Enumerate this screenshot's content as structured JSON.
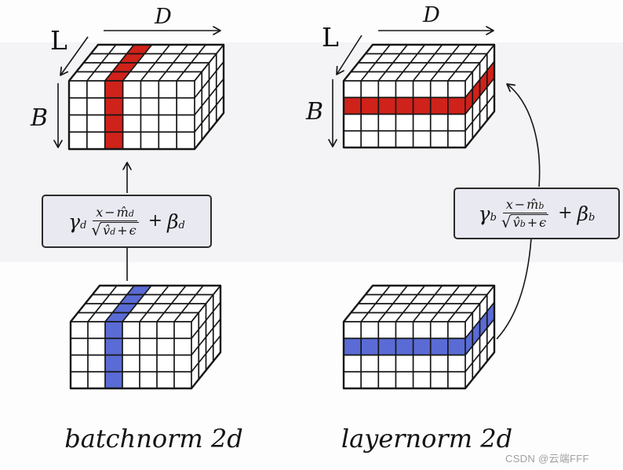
{
  "watermark": "CSDN @云端FFF",
  "colors": {
    "highlight_red": "#cf221a",
    "highlight_blue": "#5a6bd5",
    "edge": "#161616",
    "box_bg": "#e9e9f2",
    "box_border": "#2b2b2b",
    "watermark_gray": "#a0a0a0"
  },
  "dims": {
    "cols": 7,
    "rows": 4,
    "depth": 4
  },
  "panels": [
    {
      "id": "batchnorm",
      "caption": "batchnorm 2d",
      "axis": {
        "d": "D",
        "l": "L",
        "b": "B"
      },
      "formula": {
        "gamma": "γ",
        "sub": "d",
        "x": "x",
        "minus": "−",
        "m_hat": "m̂",
        "sqrt": "√",
        "v_hat": "v̂",
        "plus": "+",
        "epsilon": "ϵ",
        "beta": "β"
      },
      "cubes": {
        "top": {
          "highlight": "column",
          "index": 2,
          "color": "highlight_red"
        },
        "bottom": {
          "highlight": "column",
          "index": 2,
          "color": "highlight_blue"
        }
      }
    },
    {
      "id": "layernorm",
      "caption": "layernorm 2d",
      "axis": {
        "d": "D",
        "l": "L",
        "b": "B"
      },
      "formula": {
        "gamma": "γ",
        "sub": "b",
        "x": "x",
        "minus": "−",
        "m_hat": "m̂",
        "sqrt": "√",
        "v_hat": "v̂",
        "plus": "+",
        "epsilon": "ϵ",
        "beta": "β"
      },
      "cubes": {
        "top": {
          "highlight": "row",
          "index": 1,
          "color": "highlight_red"
        },
        "bottom": {
          "highlight": "row",
          "index": 1,
          "color": "highlight_blue"
        }
      }
    }
  ]
}
